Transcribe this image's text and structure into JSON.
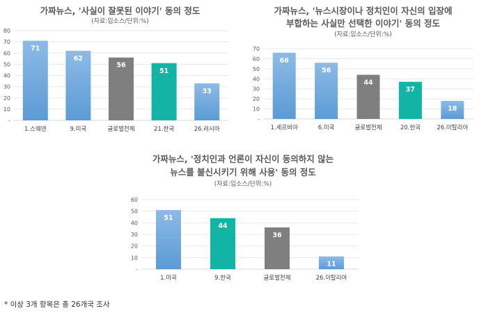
{
  "colors": {
    "blue": "#5b9bd5",
    "blue_light": "#8dbbe6",
    "gray": "#7f7f7f",
    "teal": "#12b5a5",
    "axis": "#d9d9d9",
    "grid": "#e8e8e8"
  },
  "note": "* 이상 3개 항목은 총 26개국 조사",
  "chart_data": [
    {
      "type": "bar",
      "title_lines": [
        "가짜뉴스, '사실이 잘못된 이야기' 동의 정도"
      ],
      "subtitle": "(자료:입소스/단위:%)",
      "ylim": [
        0,
        80
      ],
      "yticks": [
        "-",
        "10",
        "20",
        "30",
        "40",
        "50",
        "60",
        "70",
        "80"
      ],
      "categories": [
        "1.스웨덴",
        "9.미국",
        "글로벌전체",
        "21.한국",
        "26.러시아"
      ],
      "values": [
        71,
        62,
        56,
        51,
        33
      ],
      "colors": [
        "blue",
        "blue",
        "gray",
        "teal",
        "blue"
      ],
      "grid": true,
      "legend": "none"
    },
    {
      "type": "bar",
      "title_lines": [
        "가짜뉴스, '뉴스시장이나 정치인이 자신의 입장에",
        "부합하는 사실만 선택한 이야기' 동의 정도"
      ],
      "subtitle": "(자료:입소스/단위:%)",
      "ylim": [
        0,
        70
      ],
      "yticks": [
        "-",
        "10",
        "20",
        "30",
        "40",
        "50",
        "60",
        "70"
      ],
      "categories": [
        "1.세르비아",
        "6.미국",
        "글로벌전체",
        "20.한국",
        "26.이탈리아"
      ],
      "values": [
        66,
        56,
        44,
        37,
        18
      ],
      "colors": [
        "blue",
        "blue",
        "gray",
        "teal",
        "blue"
      ],
      "grid": true,
      "legend": "none"
    },
    {
      "type": "bar",
      "title_lines": [
        "가짜뉴스, '정치인과 언론이 자신이 동의하지 않는",
        "뉴스를 불신시키기 위해 사용' 동의 정도"
      ],
      "subtitle": "(자료:입소스/단위:%)",
      "ylim": [
        0,
        60
      ],
      "yticks": [
        "-",
        "10",
        "20",
        "30",
        "40",
        "50",
        "60"
      ],
      "categories": [
        "1.미국",
        "9.한국",
        "글로벌전체",
        "26.이탈리아"
      ],
      "values": [
        51,
        44,
        36,
        11
      ],
      "colors": [
        "blue",
        "teal",
        "gray",
        "blue"
      ],
      "grid": true,
      "legend": "none"
    }
  ]
}
